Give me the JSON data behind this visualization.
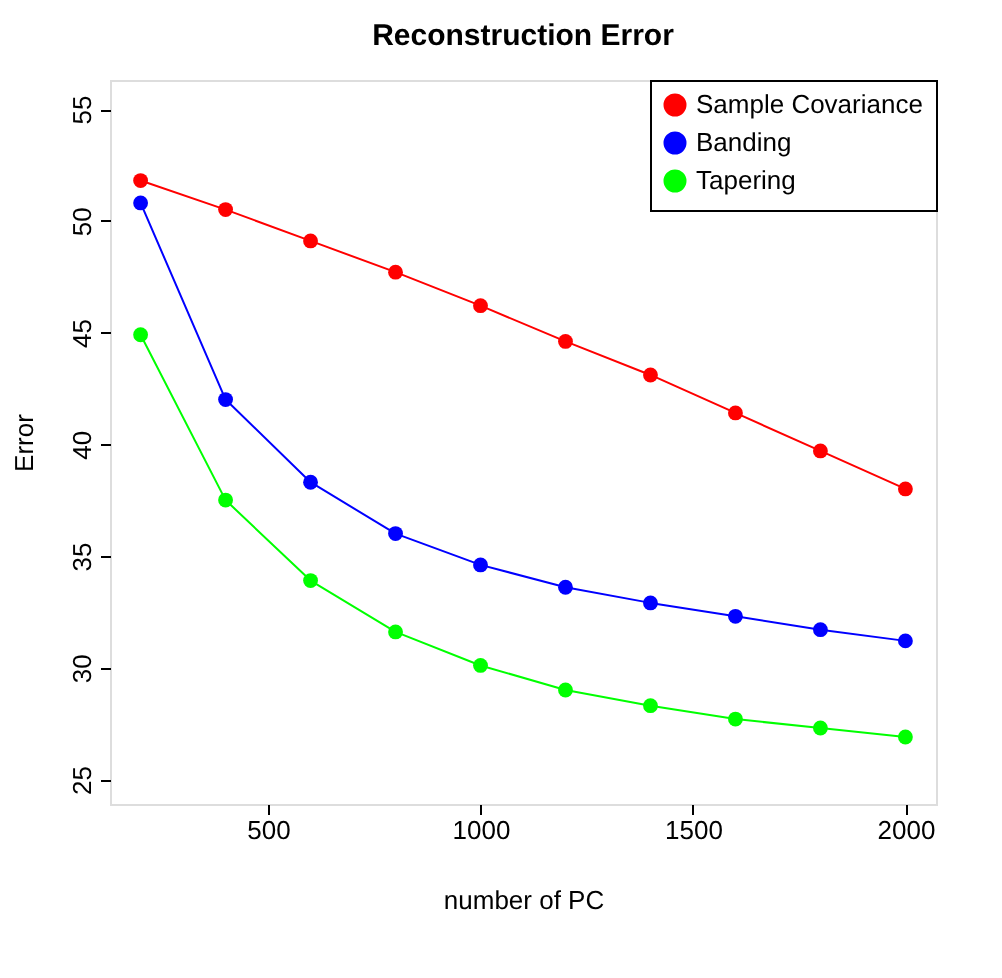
{
  "chart_data": {
    "type": "line",
    "title": "Reconstruction Error",
    "xlabel": "number of PC",
    "ylabel": "Error",
    "x": [
      200,
      400,
      600,
      800,
      1000,
      1200,
      1400,
      1600,
      1800,
      2000
    ],
    "series": [
      {
        "name": "Sample Covariance",
        "color": "#ff0000",
        "values": [
          51.8,
          50.5,
          49.1,
          47.7,
          46.2,
          44.6,
          43.1,
          41.4,
          39.7,
          38.0
        ]
      },
      {
        "name": "Banding",
        "color": "#0000ff",
        "values": [
          50.8,
          42.0,
          38.3,
          36.0,
          34.6,
          33.6,
          32.9,
          32.3,
          31.7,
          31.2
        ]
      },
      {
        "name": "Tapering",
        "color": "#00ff00",
        "values": [
          44.9,
          37.5,
          33.9,
          31.6,
          30.1,
          29.0,
          28.3,
          27.7,
          27.3,
          26.9
        ]
      }
    ],
    "xlim": [
      128,
      2072
    ],
    "xticks": [
      500,
      1000,
      1500,
      2000
    ],
    "ylim": [
      23.9,
      56.3
    ],
    "yticks": [
      25,
      30,
      35,
      40,
      45,
      50,
      55
    ],
    "grid": false,
    "legend": "top right",
    "marker": "circle",
    "line_style": "solid"
  }
}
